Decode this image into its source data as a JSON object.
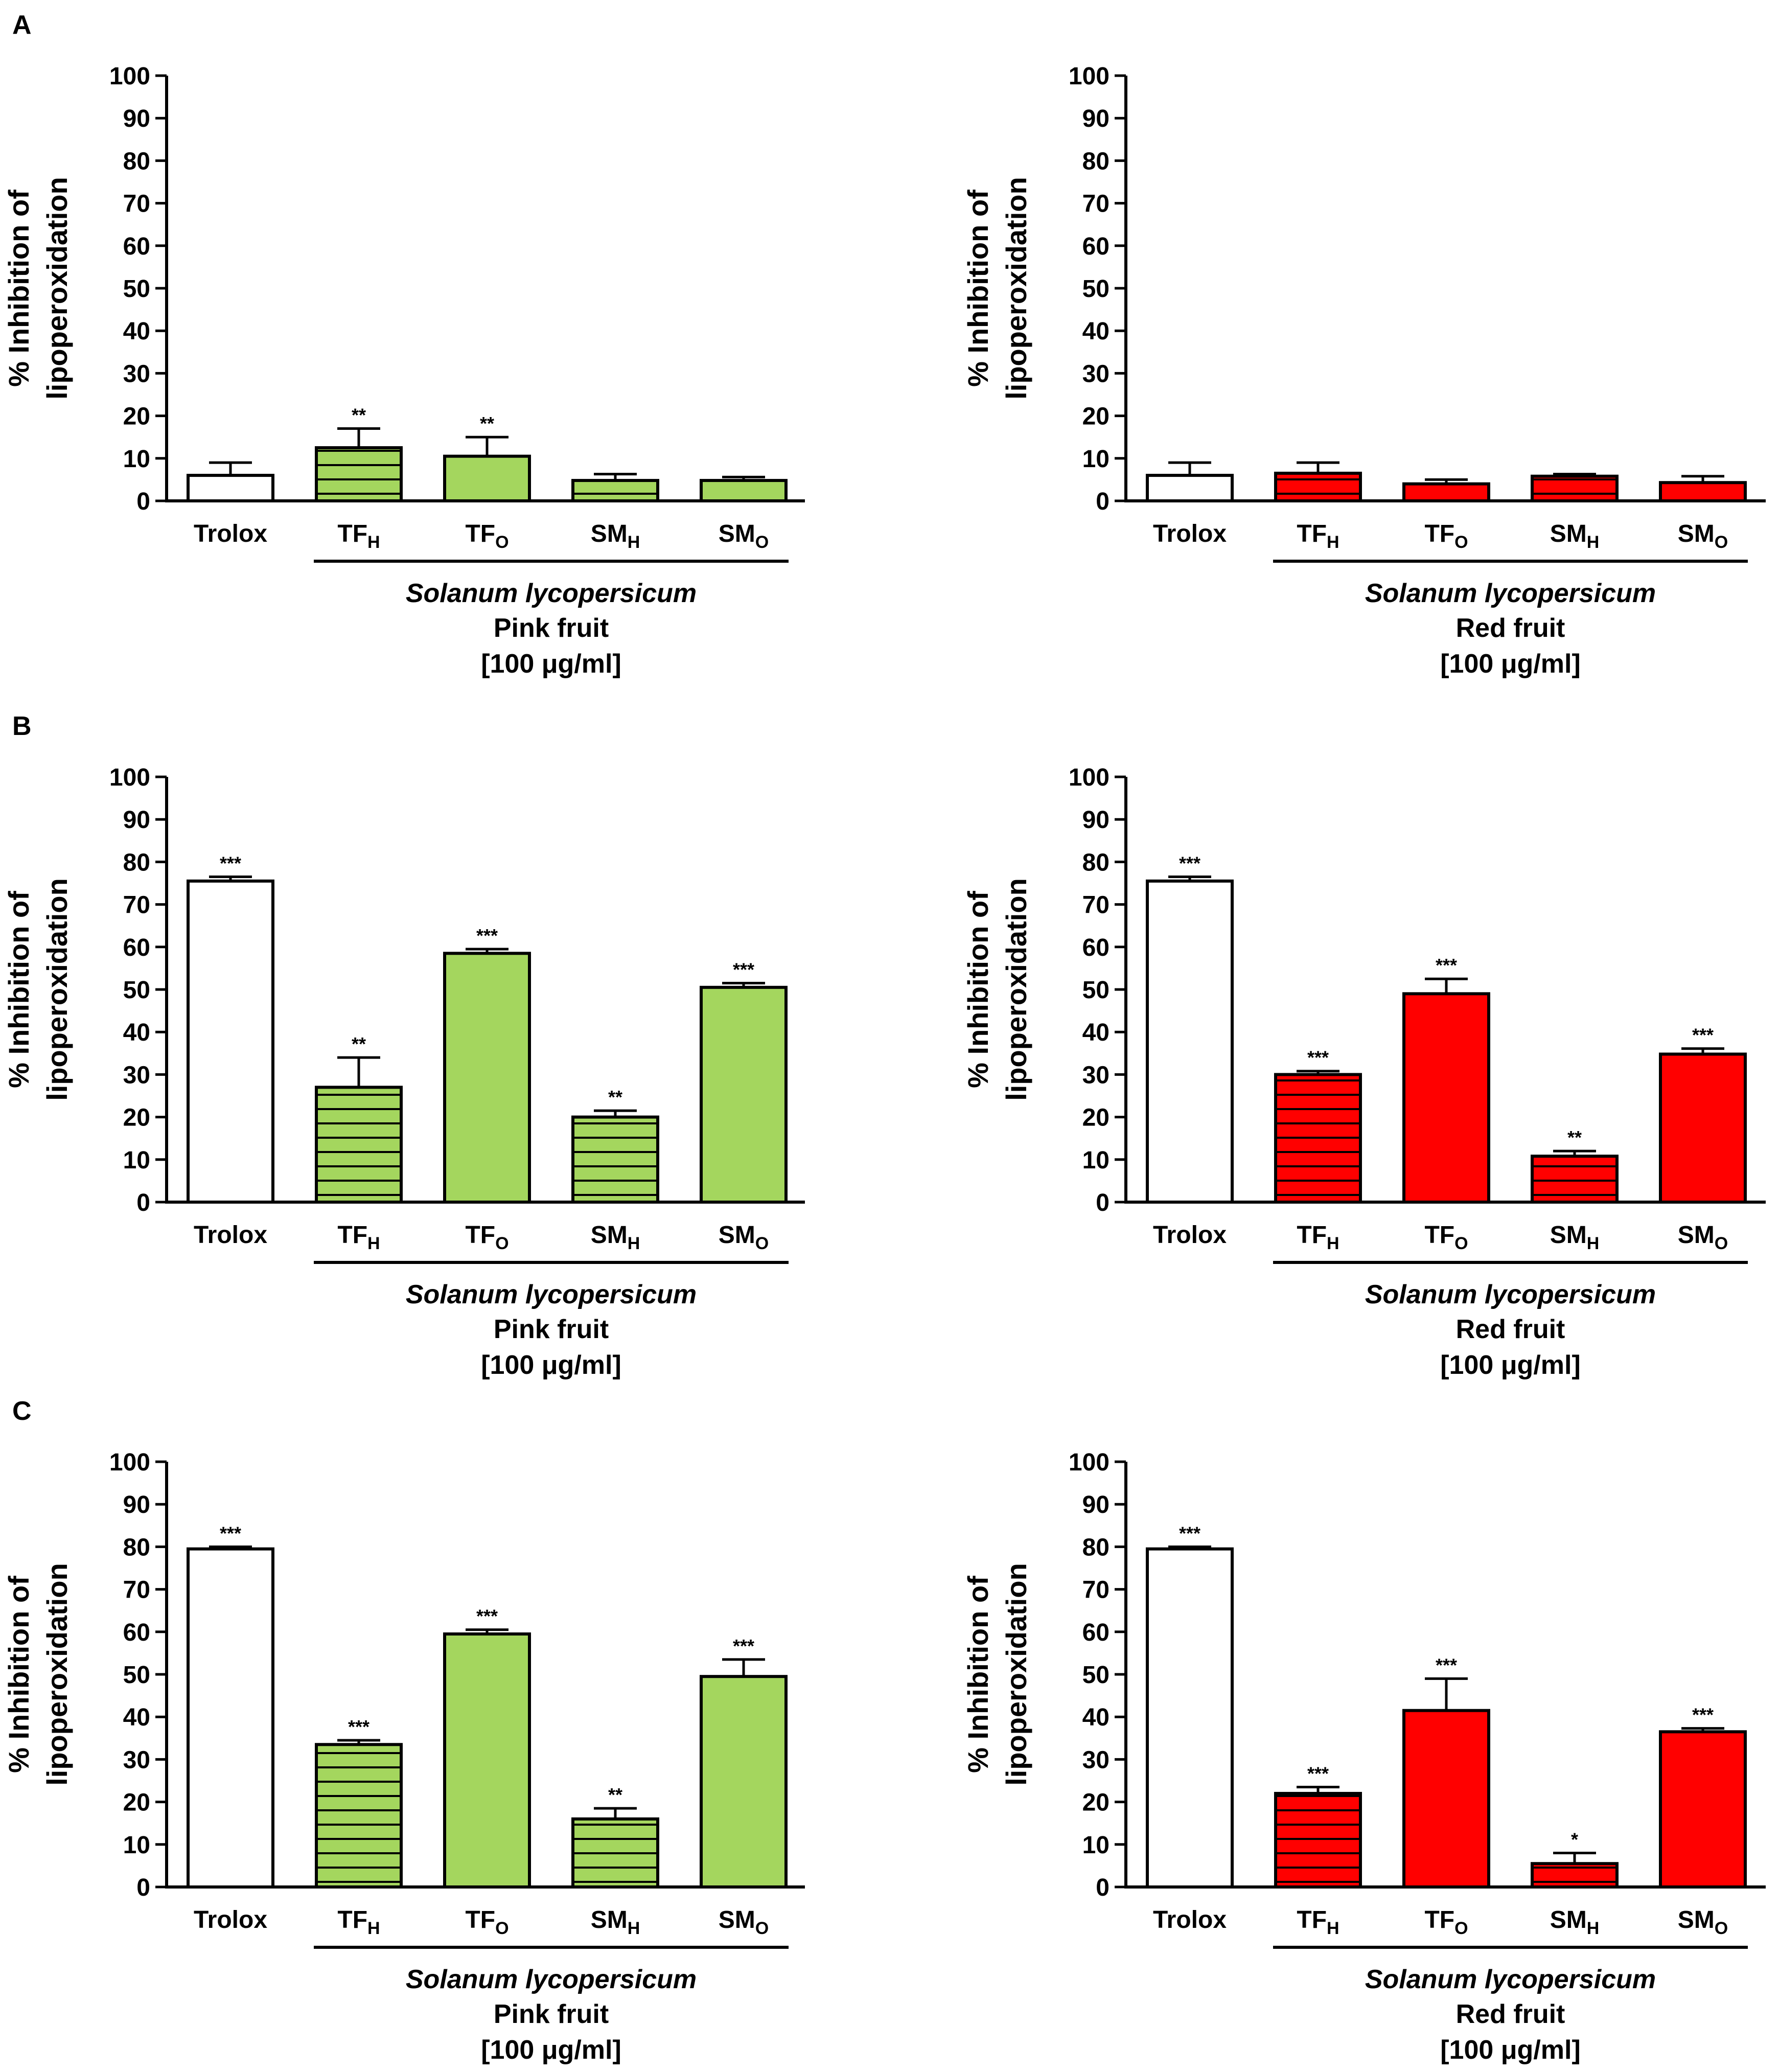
{
  "colors": {
    "pink_fruit": "#a4d65e",
    "red_fruit": "#ff0000",
    "control": "#ffffff",
    "axis": "#000000"
  },
  "chart_data": [
    {
      "panel": "A",
      "show_letter": true,
      "type": "bar",
      "ylabel_lines": [
        "% Inhibition of",
        "lipoperoxidation"
      ],
      "ylim": [
        0,
        100
      ],
      "yticks": [
        0,
        10,
        20,
        30,
        40,
        50,
        60,
        70,
        80,
        90,
        100
      ],
      "categories": [
        {
          "main": "Trolox",
          "sub": ""
        },
        {
          "main": "TF",
          "sub": "H"
        },
        {
          "main": "TF",
          "sub": "O"
        },
        {
          "main": "SM",
          "sub": "H"
        },
        {
          "main": "SM",
          "sub": "O"
        }
      ],
      "values": [
        6,
        12.5,
        10.5,
        4.8,
        4.8
      ],
      "errors": [
        3,
        4.5,
        4.5,
        1.5,
        0.8
      ],
      "significance": [
        "",
        "**",
        "**",
        "",
        ""
      ],
      "bar_style": [
        "control",
        "hatched",
        "solid",
        "hatched",
        "solid"
      ],
      "color_key": "pink_fruit",
      "species": "Solanum lycopersicum",
      "group": "Pink fruit",
      "concentration": "[100 μg/ml]"
    },
    {
      "panel": "A",
      "show_letter": false,
      "type": "bar",
      "ylabel_lines": [
        "% Inhibition of",
        "lipoperoxidation"
      ],
      "ylim": [
        0,
        100
      ],
      "yticks": [
        0,
        10,
        20,
        30,
        40,
        50,
        60,
        70,
        80,
        90,
        100
      ],
      "categories": [
        {
          "main": "Trolox",
          "sub": ""
        },
        {
          "main": "TF",
          "sub": "H"
        },
        {
          "main": "TF",
          "sub": "O"
        },
        {
          "main": "SM",
          "sub": "H"
        },
        {
          "main": "SM",
          "sub": "O"
        }
      ],
      "values": [
        6,
        6.5,
        4,
        5.8,
        4.3
      ],
      "errors": [
        3,
        2.5,
        1,
        0.5,
        1.5
      ],
      "significance": [
        "",
        "",
        "",
        "",
        ""
      ],
      "bar_style": [
        "control",
        "hatched",
        "solid",
        "hatched",
        "solid"
      ],
      "color_key": "red_fruit",
      "species": "Solanum lycopersicum",
      "group": "Red fruit",
      "concentration": "[100 μg/ml]"
    },
    {
      "panel": "B",
      "show_letter": true,
      "type": "bar",
      "ylabel_lines": [
        "% Inhibition of",
        "lipoperoxidation"
      ],
      "ylim": [
        0,
        100
      ],
      "yticks": [
        0,
        10,
        20,
        30,
        40,
        50,
        60,
        70,
        80,
        90,
        100
      ],
      "categories": [
        {
          "main": "Trolox",
          "sub": ""
        },
        {
          "main": "TF",
          "sub": "H"
        },
        {
          "main": "TF",
          "sub": "O"
        },
        {
          "main": "SM",
          "sub": "H"
        },
        {
          "main": "SM",
          "sub": "O"
        }
      ],
      "values": [
        75.5,
        27,
        58.5,
        20,
        50.5
      ],
      "errors": [
        1,
        7,
        1,
        1.5,
        1
      ],
      "significance": [
        "***",
        "**",
        "***",
        "**",
        "***"
      ],
      "bar_style": [
        "control",
        "hatched",
        "solid",
        "hatched",
        "solid"
      ],
      "color_key": "pink_fruit",
      "species": "Solanum lycopersicum",
      "group": "Pink fruit",
      "concentration": "[100 μg/ml]"
    },
    {
      "panel": "B",
      "show_letter": false,
      "type": "bar",
      "ylabel_lines": [
        "% Inhibition of",
        "lipoperoxidation"
      ],
      "ylim": [
        0,
        100
      ],
      "yticks": [
        0,
        10,
        20,
        30,
        40,
        50,
        60,
        70,
        80,
        90,
        100
      ],
      "categories": [
        {
          "main": "Trolox",
          "sub": ""
        },
        {
          "main": "TF",
          "sub": "H"
        },
        {
          "main": "TF",
          "sub": "O"
        },
        {
          "main": "SM",
          "sub": "H"
        },
        {
          "main": "SM",
          "sub": "O"
        }
      ],
      "values": [
        75.5,
        30,
        49,
        10.8,
        34.8
      ],
      "errors": [
        1,
        0.8,
        3.5,
        1.2,
        1.3
      ],
      "significance": [
        "***",
        "***",
        "***",
        "**",
        "***"
      ],
      "bar_style": [
        "control",
        "hatched",
        "solid",
        "hatched",
        "solid"
      ],
      "color_key": "red_fruit",
      "species": "Solanum lycopersicum",
      "group": "Red fruit",
      "concentration": "[100 μg/ml]"
    },
    {
      "panel": "C",
      "show_letter": true,
      "type": "bar",
      "ylabel_lines": [
        "% Inhibition of",
        "lipoperoxidation"
      ],
      "ylim": [
        0,
        100
      ],
      "yticks": [
        0,
        10,
        20,
        30,
        40,
        50,
        60,
        70,
        80,
        90,
        100
      ],
      "categories": [
        {
          "main": "Trolox",
          "sub": ""
        },
        {
          "main": "TF",
          "sub": "H"
        },
        {
          "main": "TF",
          "sub": "O"
        },
        {
          "main": "SM",
          "sub": "H"
        },
        {
          "main": "SM",
          "sub": "O"
        }
      ],
      "values": [
        79.5,
        33.5,
        59.5,
        16,
        49.5
      ],
      "errors": [
        0.5,
        1,
        1,
        2.5,
        4
      ],
      "significance": [
        "***",
        "***",
        "***",
        "**",
        "***"
      ],
      "bar_style": [
        "control",
        "hatched",
        "solid",
        "hatched",
        "solid"
      ],
      "color_key": "pink_fruit",
      "species": "Solanum lycopersicum",
      "group": "Pink fruit",
      "concentration": "[100 μg/ml]"
    },
    {
      "panel": "C",
      "show_letter": false,
      "type": "bar",
      "ylabel_lines": [
        "% Inhibition of",
        "lipoperoxidation"
      ],
      "ylim": [
        0,
        100
      ],
      "yticks": [
        0,
        10,
        20,
        30,
        40,
        50,
        60,
        70,
        80,
        90,
        100
      ],
      "categories": [
        {
          "main": "Trolox",
          "sub": ""
        },
        {
          "main": "TF",
          "sub": "H"
        },
        {
          "main": "TF",
          "sub": "O"
        },
        {
          "main": "SM",
          "sub": "H"
        },
        {
          "main": "SM",
          "sub": "O"
        }
      ],
      "values": [
        79.5,
        22,
        41.5,
        5.5,
        36.5
      ],
      "errors": [
        0.5,
        1.5,
        7.5,
        2.5,
        0.8
      ],
      "significance": [
        "***",
        "***",
        "***",
        "*",
        "***"
      ],
      "bar_style": [
        "control",
        "hatched",
        "solid",
        "hatched",
        "solid"
      ],
      "color_key": "red_fruit",
      "species": "Solanum lycopersicum",
      "group": "Red fruit",
      "concentration": "[100 μg/ml]"
    }
  ]
}
